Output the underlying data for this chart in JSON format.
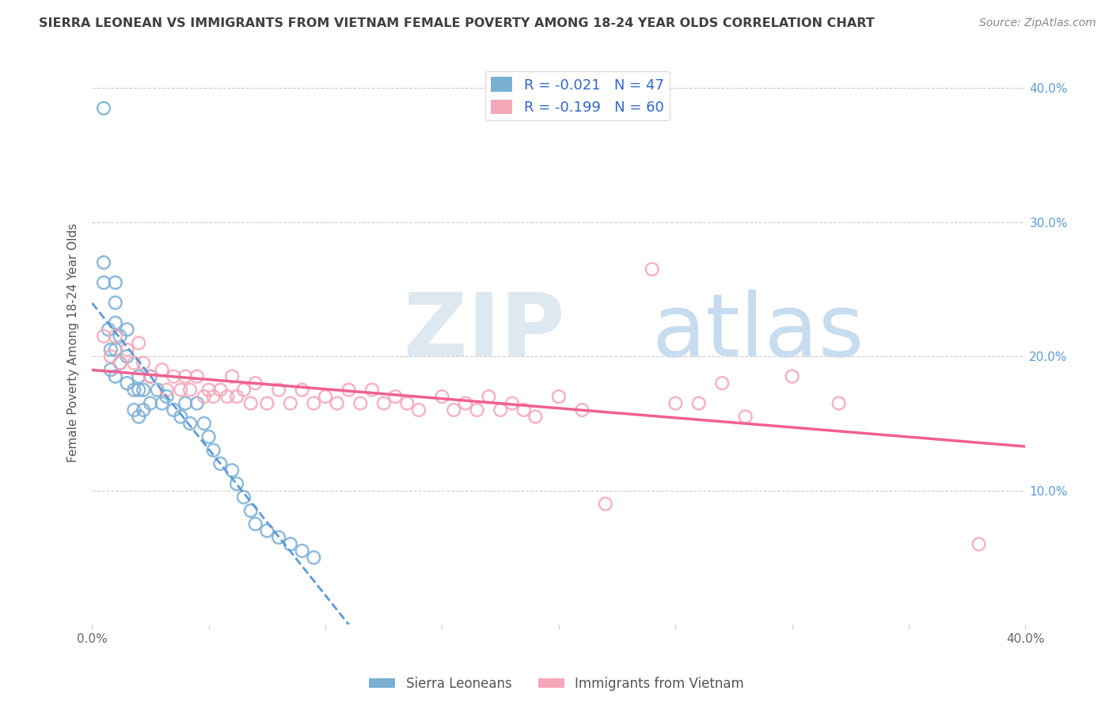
{
  "title": "SIERRA LEONEAN VS IMMIGRANTS FROM VIETNAM FEMALE POVERTY AMONG 18-24 YEAR OLDS CORRELATION CHART",
  "source": "Source: ZipAtlas.com",
  "ylabel": "Female Poverty Among 18-24 Year Olds",
  "xlim": [
    0.0,
    0.4
  ],
  "ylim": [
    0.0,
    0.42
  ],
  "color_blue": "#7BAFD4",
  "color_pink": "#F4A7B9",
  "color_blue_line": "#5B9BD5",
  "color_pink_line": "#F06090",
  "legend1_label": "R = -0.021   N = 47",
  "legend2_label": "R = -0.199   N = 60",
  "legend_group1": "Sierra Leoneans",
  "legend_group2": "Immigrants from Vietnam",
  "blue_scatter_x": [
    0.005,
    0.005,
    0.005,
    0.007,
    0.008,
    0.008,
    0.01,
    0.01,
    0.01,
    0.01,
    0.01,
    0.012,
    0.012,
    0.015,
    0.015,
    0.015,
    0.018,
    0.018,
    0.02,
    0.02,
    0.02,
    0.022,
    0.022,
    0.025,
    0.025,
    0.028,
    0.03,
    0.032,
    0.035,
    0.038,
    0.04,
    0.042,
    0.045,
    0.048,
    0.05,
    0.052,
    0.055,
    0.06,
    0.062,
    0.065,
    0.068,
    0.07,
    0.075,
    0.08,
    0.085,
    0.09,
    0.095
  ],
  "blue_scatter_y": [
    0.385,
    0.27,
    0.255,
    0.22,
    0.205,
    0.19,
    0.255,
    0.24,
    0.225,
    0.205,
    0.185,
    0.215,
    0.195,
    0.22,
    0.2,
    0.18,
    0.175,
    0.16,
    0.185,
    0.175,
    0.155,
    0.175,
    0.16,
    0.185,
    0.165,
    0.175,
    0.165,
    0.17,
    0.16,
    0.155,
    0.165,
    0.15,
    0.165,
    0.15,
    0.14,
    0.13,
    0.12,
    0.115,
    0.105,
    0.095,
    0.085,
    0.075,
    0.07,
    0.065,
    0.06,
    0.055,
    0.05
  ],
  "pink_scatter_x": [
    0.005,
    0.008,
    0.01,
    0.012,
    0.015,
    0.018,
    0.02,
    0.022,
    0.025,
    0.03,
    0.032,
    0.035,
    0.038,
    0.04,
    0.042,
    0.045,
    0.048,
    0.05,
    0.052,
    0.055,
    0.058,
    0.06,
    0.062,
    0.065,
    0.068,
    0.07,
    0.075,
    0.08,
    0.085,
    0.09,
    0.095,
    0.1,
    0.105,
    0.11,
    0.115,
    0.12,
    0.125,
    0.13,
    0.135,
    0.14,
    0.15,
    0.155,
    0.16,
    0.165,
    0.17,
    0.175,
    0.18,
    0.185,
    0.19,
    0.2,
    0.21,
    0.22,
    0.24,
    0.25,
    0.26,
    0.27,
    0.28,
    0.3,
    0.32,
    0.38
  ],
  "pink_scatter_y": [
    0.215,
    0.2,
    0.215,
    0.195,
    0.205,
    0.195,
    0.21,
    0.195,
    0.185,
    0.19,
    0.175,
    0.185,
    0.175,
    0.185,
    0.175,
    0.185,
    0.17,
    0.175,
    0.17,
    0.175,
    0.17,
    0.185,
    0.17,
    0.175,
    0.165,
    0.18,
    0.165,
    0.175,
    0.165,
    0.175,
    0.165,
    0.17,
    0.165,
    0.175,
    0.165,
    0.175,
    0.165,
    0.17,
    0.165,
    0.16,
    0.17,
    0.16,
    0.165,
    0.16,
    0.17,
    0.16,
    0.165,
    0.16,
    0.155,
    0.17,
    0.16,
    0.09,
    0.265,
    0.165,
    0.165,
    0.18,
    0.155,
    0.185,
    0.165,
    0.06
  ]
}
